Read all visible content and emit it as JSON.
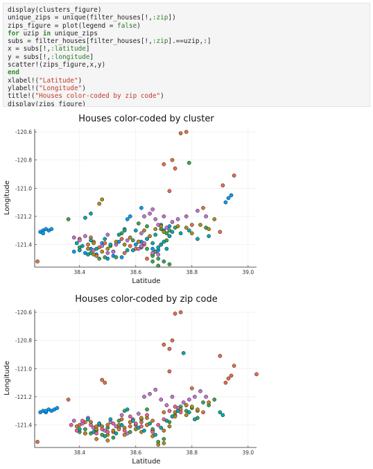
{
  "code": [
    [
      {
        "t": "display(clusters_figure)"
      }
    ],
    [
      {
        "t": "unique_zips = unique(filter_houses[!,"
      },
      {
        "t": ":zip",
        "c": "sym"
      },
      {
        "t": "])"
      }
    ],
    [
      {
        "t": "zips_figure = plot(legend = "
      },
      {
        "t": "false",
        "c": "sym"
      },
      {
        "t": ")"
      }
    ],
    [
      {
        "t": "for",
        "c": "kw"
      },
      {
        "t": " uzip "
      },
      {
        "t": "in",
        "c": "kw"
      },
      {
        "t": " unique_zips"
      }
    ],
    [
      {
        "t": "subs = filter_houses[filter_houses[!,"
      },
      {
        "t": ":zip",
        "c": "sym"
      },
      {
        "t": "].==uzip,:]"
      }
    ],
    [
      {
        "t": "x = subs[!,"
      },
      {
        "t": ":latitude",
        "c": "sym"
      },
      {
        "t": "]"
      }
    ],
    [
      {
        "t": "y = subs[!,"
      },
      {
        "t": ":longitude",
        "c": "sym"
      },
      {
        "t": "]"
      }
    ],
    [
      {
        "t": "scatter!(zips_figure,x,y)"
      }
    ],
    [
      {
        "t": "end",
        "c": "kw"
      }
    ],
    [
      {
        "t": "xlabel!("
      },
      {
        "t": "\"Latitude\"",
        "c": "str"
      },
      {
        "t": ")"
      }
    ],
    [
      {
        "t": "ylabel!("
      },
      {
        "t": "\"Longitude\"",
        "c": "str"
      },
      {
        "t": ")"
      }
    ],
    [
      {
        "t": "title!("
      },
      {
        "t": "\"Houses color-coded by zip code\"",
        "c": "str"
      },
      {
        "t": ")"
      }
    ],
    [
      {
        "t": "display(zips_figure)"
      }
    ]
  ],
  "palette": [
    "#009AFA",
    "#E36F47",
    "#3EA44E",
    "#C371D2",
    "#AC8E18",
    "#00A9AD",
    "#ED5E93",
    "#C68225",
    "#00A98D",
    "#8E971E",
    "#00A9CD",
    "#9B7FE9"
  ],
  "chart_data": [
    {
      "type": "scatter",
      "title": "Houses color-coded by cluster",
      "xlabel": "Latitude",
      "ylabel": "Longitude",
      "xlim": [
        38.24,
        39.03
      ],
      "ylim": [
        -121.56,
        -120.58
      ],
      "xticks": [
        38.4,
        38.6,
        38.8,
        39.0
      ],
      "xtick_labels": [
        "38.4",
        "38.6",
        "38.8",
        "39.0"
      ],
      "yticks": [
        -121.4,
        -121.2,
        -121.0,
        -120.8,
        -120.6
      ],
      "ytick_labels": [
        "-121.4",
        "-121.2",
        "-121.0",
        "-120.8",
        "-120.6"
      ],
      "grid": true,
      "legend": "none",
      "series": [
        {
          "x": [
            38.26,
            38.27,
            38.28,
            38.29,
            38.3,
            38.27,
            38.38,
            38.4,
            38.42,
            38.44,
            38.46,
            38.5,
            38.52,
            38.55,
            38.6,
            38.62,
            38.64,
            38.66,
            38.67,
            38.68,
            38.7,
            38.72,
            38.69,
            38.58,
            38.57,
            38.62,
            38.93,
            38.94,
            38.92,
            38.54,
            38.48
          ],
          "y": [
            -121.31,
            -121.3,
            -121.29,
            -121.3,
            -121.29,
            -121.32,
            -121.45,
            -121.44,
            -121.46,
            -121.43,
            -121.47,
            -121.5,
            -121.48,
            -121.49,
            -121.4,
            -121.38,
            -121.36,
            -121.43,
            -121.45,
            -121.44,
            -121.3,
            -121.27,
            -121.26,
            -121.2,
            -121.22,
            -121.14,
            -121.07,
            -121.05,
            -121.1,
            -121.38,
            -121.39
          ]
        },
        {
          "x": [
            38.25,
            38.4,
            38.43,
            38.45,
            38.47,
            38.49,
            38.52,
            38.55,
            38.58,
            38.6,
            38.61,
            38.63,
            38.7,
            38.74,
            38.76,
            38.78,
            38.8,
            38.84,
            38.9,
            38.95,
            38.91,
            38.73,
            38.72,
            38.66,
            38.64,
            38.56,
            38.46,
            38.44
          ],
          "y": [
            -121.52,
            -121.36,
            -121.4,
            -121.38,
            -121.42,
            -121.39,
            -121.45,
            -121.36,
            -121.41,
            -121.43,
            -121.38,
            -121.4,
            -120.83,
            -120.86,
            -120.61,
            -120.6,
            -121.26,
            -121.14,
            -121.31,
            -120.91,
            -120.98,
            -120.8,
            -121.02,
            -121.47,
            -121.5,
            -121.46,
            -121.48,
            -121.35
          ]
        },
        {
          "x": [
            38.21,
            38.36,
            38.4,
            38.44,
            38.47,
            38.49,
            38.51,
            38.55,
            38.56,
            38.59,
            38.62,
            38.64,
            38.66,
            38.68,
            38.7,
            38.72,
            38.68,
            38.66,
            38.67,
            38.69,
            38.71,
            38.79,
            38.85,
            38.72,
            38.74,
            38.71,
            38.69,
            38.64,
            38.61,
            38.53
          ],
          "y": [
            -121.3,
            -121.22,
            -121.42,
            -121.46,
            -121.5,
            -121.49,
            -121.41,
            -121.32,
            -121.29,
            -121.37,
            -121.42,
            -121.43,
            -121.52,
            -121.55,
            -121.52,
            -121.54,
            -121.5,
            -121.48,
            -121.45,
            -121.4,
            -121.37,
            -120.82,
            -121.28,
            -121.3,
            -121.28,
            -121.32,
            -121.29,
            -121.27,
            -121.25,
            -121.49
          ]
        },
        {
          "x": [
            38.38,
            38.4,
            38.42,
            38.45,
            38.48,
            38.5,
            38.52,
            38.53,
            38.57,
            38.62,
            38.63,
            38.65,
            38.66,
            38.67,
            38.68,
            38.7,
            38.71,
            38.73,
            38.75,
            38.78,
            38.82,
            38.85,
            38.62,
            38.61,
            38.63,
            38.66,
            38.68,
            38.5
          ],
          "y": [
            -121.35,
            -121.37,
            -121.34,
            -121.44,
            -121.41,
            -121.46,
            -121.45,
            -121.4,
            -121.37,
            -121.32,
            -121.2,
            -121.18,
            -121.15,
            -121.22,
            -121.26,
            -121.2,
            -121.28,
            -121.24,
            -121.22,
            -121.2,
            -121.16,
            -121.2,
            -121.41,
            -121.43,
            -121.39,
            -121.46,
            -121.47,
            -121.33
          ]
        },
        {
          "x": [
            38.43,
            38.45,
            38.48,
            38.5,
            38.53,
            38.56,
            38.58,
            38.61,
            38.63,
            38.65,
            38.67,
            38.69,
            38.7,
            38.72,
            38.75,
            38.78,
            38.8,
            38.83,
            38.86,
            38.88,
            38.45,
            38.48,
            38.47
          ],
          "y": [
            -121.43,
            -121.39,
            -121.45,
            -121.43,
            -121.38,
            -121.4,
            -121.35,
            -121.38,
            -121.3,
            -121.34,
            -121.29,
            -121.27,
            -121.31,
            -121.34,
            -121.27,
            -121.28,
            -121.32,
            -121.26,
            -121.29,
            -121.22,
            -121.47,
            -121.08,
            -121.11
          ]
        },
        {
          "x": [
            38.39,
            38.41,
            38.44,
            38.46,
            38.49,
            38.51,
            38.54,
            38.57,
            38.6,
            38.64,
            38.67,
            38.69,
            38.7,
            38.72,
            38.76,
            38.79,
            38.82,
            38.86,
            38.4,
            38.43,
            38.68,
            38.66,
            38.71,
            38.73,
            38.59,
            38.56,
            38.44,
            38.42
          ],
          "y": [
            -121.39,
            -121.41,
            -121.37,
            -121.43,
            -121.36,
            -121.4,
            -121.33,
            -121.44,
            -121.3,
            -121.36,
            -121.33,
            -121.4,
            -121.38,
            -121.34,
            -121.32,
            -121.3,
            -121.36,
            -121.34,
            -121.44,
            -121.47,
            -121.42,
            -121.39,
            -121.43,
            -121.31,
            -121.44,
            -121.3,
            -121.18,
            -121.21
          ]
        }
      ]
    },
    {
      "type": "scatter",
      "title": "Houses color-coded by zip code",
      "xlabel": "Latitude",
      "ylabel": "Longitude",
      "xlim": [
        38.24,
        39.03
      ],
      "ylim": [
        -121.56,
        -120.58
      ],
      "xticks": [
        38.4,
        38.6,
        38.8,
        39.0
      ],
      "xtick_labels": [
        "38.4",
        "38.6",
        "38.8",
        "39.0"
      ],
      "yticks": [
        -121.4,
        -121.2,
        -121.0,
        -120.8,
        -120.6
      ],
      "ytick_labels": [
        "-121.4",
        "-121.2",
        "-121.0",
        "-120.8",
        "-120.6"
      ],
      "grid": true,
      "legend": "none",
      "series": [
        {
          "x": [
            38.26,
            38.27,
            38.28,
            38.29,
            38.3,
            38.31,
            38.32,
            38.28
          ],
          "y": [
            -121.31,
            -121.3,
            -121.31,
            -121.29,
            -121.3,
            -121.29,
            -121.28,
            -121.3
          ]
        },
        {
          "x": [
            38.25,
            38.36,
            38.4,
            38.42,
            38.45,
            38.47,
            38.48,
            38.49,
            38.52,
            38.55,
            38.58,
            38.6,
            38.62,
            38.64,
            38.66,
            38.7,
            38.72,
            38.74,
            38.76,
            38.78,
            38.8,
            38.84,
            38.9,
            38.95,
            38.93,
            38.94,
            38.92,
            39.03,
            38.73,
            38.72
          ],
          "y": [
            -121.52,
            -121.22,
            -121.4,
            -121.38,
            -121.42,
            -121.39,
            -121.08,
            -121.1,
            -121.45,
            -121.36,
            -121.41,
            -121.43,
            -121.38,
            -121.4,
            -121.44,
            -120.83,
            -120.86,
            -120.61,
            -120.6,
            -121.26,
            -121.14,
            -121.31,
            -120.91,
            -120.98,
            -121.07,
            -121.05,
            -121.1,
            -121.04,
            -120.8,
            -121.02
          ]
        },
        {
          "x": [
            38.4,
            38.42,
            38.44,
            38.46,
            38.48,
            38.5,
            38.52,
            38.54,
            38.56,
            38.58,
            38.6,
            38.62,
            38.64,
            38.66,
            38.68,
            38.7,
            38.72,
            38.74,
            38.76,
            38.78,
            38.8,
            38.82,
            38.84,
            38.86,
            38.88
          ],
          "y": [
            -121.45,
            -121.43,
            -121.46,
            -121.44,
            -121.47,
            -121.42,
            -121.49,
            -121.37,
            -121.3,
            -121.45,
            -121.4,
            -121.36,
            -121.29,
            -121.43,
            -121.52,
            -121.5,
            -121.38,
            -121.33,
            -121.27,
            -121.3,
            -121.28,
            -121.35,
            -121.24,
            -121.26,
            -121.22
          ]
        },
        {
          "x": [
            38.38,
            38.41,
            38.43,
            38.45,
            38.47,
            38.49,
            38.51,
            38.53,
            38.55,
            38.57,
            38.59,
            38.61,
            38.63,
            38.65,
            38.67,
            38.69,
            38.71,
            38.73,
            38.75,
            38.77,
            38.79,
            38.81,
            38.83,
            38.85
          ],
          "y": [
            -121.37,
            -121.39,
            -121.35,
            -121.42,
            -121.4,
            -121.44,
            -121.38,
            -121.41,
            -121.33,
            -121.46,
            -121.36,
            -121.32,
            -121.2,
            -121.18,
            -121.15,
            -121.22,
            -121.26,
            -121.2,
            -121.28,
            -121.24,
            -121.22,
            -121.2,
            -121.16,
            -121.2
          ]
        },
        {
          "x": [
            38.39,
            38.42,
            38.44,
            38.46,
            38.48,
            38.5,
            38.52,
            38.54,
            38.56,
            38.58,
            38.6,
            38.62,
            38.64,
            38.66,
            38.68,
            38.7,
            38.72,
            38.74,
            38.76,
            38.78,
            38.8,
            38.82
          ],
          "y": [
            -121.41,
            -121.46,
            -121.38,
            -121.43,
            -121.41,
            -121.47,
            -121.44,
            -121.4,
            -121.42,
            -121.38,
            -121.43,
            -121.45,
            -121.35,
            -121.48,
            -121.54,
            -121.53,
            -121.41,
            -121.31,
            -121.29,
            -121.33,
            -121.27,
            -121.3
          ]
        },
        {
          "x": [
            38.4,
            38.43,
            38.45,
            38.47,
            38.49,
            38.51,
            38.53,
            38.55,
            38.57,
            38.59,
            38.61,
            38.63,
            38.65,
            38.67,
            38.69,
            38.71,
            38.73,
            38.75,
            38.77,
            38.79,
            38.81,
            38.9,
            38.91
          ],
          "y": [
            -121.43,
            -121.36,
            -121.45,
            -121.39,
            -121.48,
            -121.36,
            -121.46,
            -121.4,
            -121.29,
            -121.37,
            -121.42,
            -121.44,
            -121.39,
            -121.47,
            -121.42,
            -121.37,
            -121.34,
            -121.3,
            -120.89,
            -121.31,
            -121.36,
            -121.31,
            -121.33
          ]
        },
        {
          "x": [
            38.37,
            38.39,
            38.41,
            38.44,
            38.46,
            38.48,
            38.5,
            38.52,
            38.54,
            38.56,
            38.58,
            38.6,
            38.62,
            38.64,
            38.66,
            38.68,
            38.7,
            38.72,
            38.74,
            38.76
          ],
          "y": [
            -121.4,
            -121.44,
            -121.37,
            -121.4,
            -121.46,
            -121.43,
            -121.45,
            -121.39,
            -121.42,
            -121.44,
            -121.34,
            -121.39,
            -121.41,
            -121.33,
            -121.45,
            -121.4,
            -121.36,
            -121.3,
            -121.27,
            -121.31
          ]
        },
        {
          "x": [
            38.42,
            38.46,
            38.5,
            38.54,
            38.58,
            38.62,
            38.66,
            38.7,
            38.74,
            38.78,
            38.82,
            38.86,
            38.46,
            38.5,
            38.56,
            38.64,
            38.7
          ],
          "y": [
            -121.46,
            -121.41,
            -121.4,
            -121.43,
            -121.38,
            -121.35,
            -121.37,
            -121.31,
            -121.34,
            -121.26,
            -121.29,
            -121.24,
            -121.5,
            -121.51,
            -121.47,
            -121.4,
            -121.44
          ]
        }
      ]
    }
  ]
}
